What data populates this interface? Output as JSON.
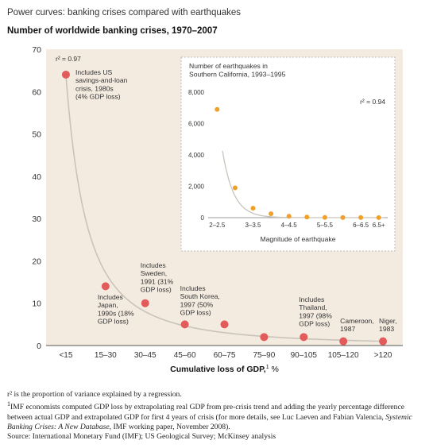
{
  "supertitle": "Power curves: banking crises compared with earthquakes",
  "colors": {
    "plot_bg": "#f4ebe0",
    "inset_bg": "#ffffff",
    "main_marker": "#e25a5a",
    "inset_marker": "#f0a028",
    "curve": "#c9c3bb",
    "axis": "#555555"
  },
  "chart_data": [
    {
      "type": "scatter",
      "title": "Number of worldwide banking crises, 1970–2007",
      "xlabel": "Cumulative loss of GDP,",
      "xlabel_sup": "1",
      "xlabel_unit": "%",
      "categories": [
        "<15",
        "15–30",
        "30–45",
        "45–60",
        "60–75",
        "75–90",
        "90–105",
        "105–120",
        ">120"
      ],
      "values": [
        64,
        14,
        10,
        5,
        5,
        2,
        2,
        1,
        1
      ],
      "ylim": [
        0,
        70
      ],
      "yticks": [
        0,
        10,
        20,
        30,
        40,
        50,
        60,
        70
      ],
      "fit_label": "r² = 0.97",
      "annotations": [
        {
          "category": "<15",
          "lines": [
            "Includes US",
            "savings-and-loan",
            "crisis, 1980s",
            "(4% GDP loss)"
          ]
        },
        {
          "category": "15–30",
          "lines": [
            "Includes",
            "Japan,",
            "1990s (18%",
            "GDP loss)"
          ]
        },
        {
          "category": "30–45",
          "lines": [
            "Includes",
            "Sweden,",
            "1991 (31%",
            "GDP loss)"
          ]
        },
        {
          "category": "45–60",
          "lines": [
            "Includes",
            "South Korea,",
            "1997 (50%",
            "GDP loss)"
          ]
        },
        {
          "category": "90–105",
          "lines": [
            "Includes",
            "Thailand,",
            "1997 (98%",
            "GDP loss)"
          ]
        },
        {
          "category": "105–120",
          "lines": [
            "Cameroon,",
            "1987"
          ]
        },
        {
          "category": ">120",
          "lines": [
            "Niger,",
            "1983"
          ]
        }
      ]
    },
    {
      "type": "scatter",
      "title_lines": [
        "Number of earthquakes in",
        "Southern California, 1993–1995"
      ],
      "xlabel": "Magnitude of earthquake",
      "categories": [
        "2–2.5",
        "3–3.5",
        "4–4.5",
        "5–5.5",
        "6–6.5",
        "6.5+"
      ],
      "x": [
        2.25,
        2.75,
        3.25,
        3.75,
        4.25,
        4.75,
        5.25,
        5.75,
        6.25,
        6.75
      ],
      "values": [
        6900,
        1900,
        600,
        250,
        90,
        40,
        15,
        8,
        5,
        3
      ],
      "ylim": [
        0,
        8000
      ],
      "yticks": [
        0,
        2000,
        4000,
        6000,
        8000
      ],
      "ytick_labels": [
        "0",
        "2,000",
        "4,000",
        "6,000",
        "8,000"
      ],
      "fit_label": "r² = 0.94"
    }
  ],
  "footnotes": {
    "r2_mark": "r²",
    "r2_text": " is the proportion of variance explained by a regression.",
    "fn1_mark": "1",
    "fn1_text_a": "IMF economists computed GDP loss by extrapolating real GDP from pre-crisis trend and adding the yearly percentage difference between actual GDP and extrapolated GDP for first 4 years of crisis (for more details, see Luc Laeven and Fabian Valencia, ",
    "fn1_italic": "Systemic Banking Crises: A New Database",
    "fn1_text_b": ", IMF working paper, November 2008).",
    "source": "Source: International Monetary Fund (IMF); US Geological Survey; McKinsey analysis"
  }
}
